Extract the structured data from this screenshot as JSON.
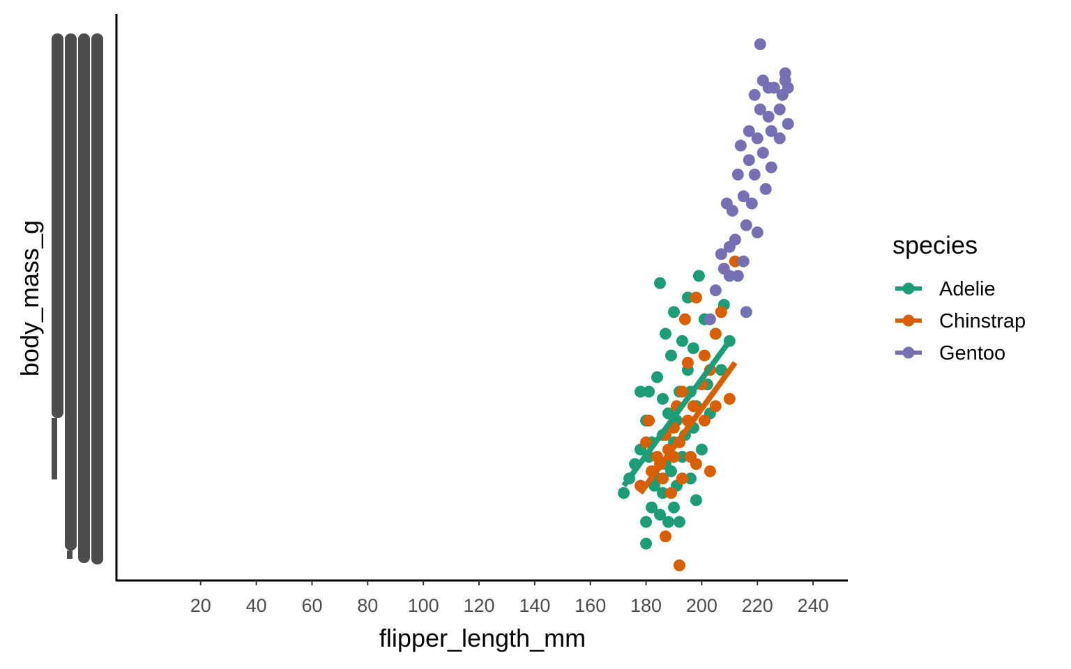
{
  "chart_data": {
    "type": "scatter",
    "xlabel": "flipper_length_mm",
    "ylabel": "body_mass_g",
    "xlim": [
      -10,
      252
    ],
    "ylim": [
      2600,
      6500
    ],
    "x_ticks": [
      20,
      40,
      60,
      80,
      100,
      120,
      140,
      160,
      180,
      200,
      220,
      240
    ],
    "y_ticks_note": "y tick labels overplotted (unreadable)",
    "grid": false,
    "legend": {
      "title": "species",
      "placement": "right"
    },
    "series": [
      {
        "name": "Adelie",
        "color": "#1b9e77",
        "x": [
          172,
          174,
          176,
          178,
          178,
          180,
          180,
          180,
          181,
          181,
          182,
          182,
          183,
          184,
          184,
          185,
          185,
          186,
          186,
          186,
          187,
          187,
          188,
          188,
          189,
          189,
          190,
          190,
          190,
          191,
          191,
          192,
          192,
          193,
          193,
          194,
          195,
          195,
          196,
          196,
          197,
          197,
          198,
          198,
          199,
          200,
          201,
          202,
          203,
          205,
          207,
          208,
          210
        ],
        "y": [
          3200,
          3300,
          3400,
          3500,
          3900,
          2850,
          3000,
          3700,
          3450,
          3900,
          3100,
          3550,
          3250,
          3300,
          4000,
          3050,
          4650,
          3200,
          3600,
          3850,
          3400,
          4300,
          3000,
          3750,
          3350,
          4150,
          3100,
          3550,
          4450,
          3250,
          3700,
          3000,
          3900,
          3450,
          4250,
          3600,
          4050,
          4550,
          3300,
          3900,
          3650,
          4200,
          3150,
          3800,
          4700,
          3500,
          4400,
          3950,
          3750,
          4300,
          4050,
          4500,
          4250
        ]
      },
      {
        "name": "Chinstrap",
        "color": "#d95f02",
        "x": [
          178,
          180,
          181,
          182,
          184,
          185,
          186,
          187,
          187,
          188,
          189,
          190,
          190,
          191,
          192,
          192,
          193,
          193,
          194,
          195,
          195,
          196,
          197,
          198,
          198,
          200,
          201,
          201,
          203,
          203,
          205,
          205,
          207,
          210,
          212
        ],
        "y": [
          3250,
          3550,
          3700,
          3350,
          3450,
          3400,
          3300,
          3600,
          2900,
          3500,
          3200,
          3650,
          3450,
          3800,
          2700,
          3550,
          3900,
          3300,
          4400,
          3700,
          4100,
          3450,
          3800,
          4550,
          3400,
          3950,
          3700,
          4150,
          4050,
          3350,
          4300,
          3800,
          4450,
          3850,
          4800
        ],
        "trend": {
          "x": [
            178,
            212
          ],
          "y": [
            3200,
            4100
          ]
        }
      },
      {
        "name": "Gentoo",
        "color": "#7570b3",
        "x": [
          203,
          205,
          207,
          208,
          209,
          210,
          210,
          211,
          212,
          213,
          213,
          214,
          215,
          215,
          216,
          216,
          217,
          217,
          218,
          219,
          219,
          220,
          220,
          221,
          221,
          222,
          222,
          223,
          224,
          224,
          225,
          225,
          226,
          228,
          228,
          229,
          230,
          230,
          231,
          231
        ],
        "y": [
          4400,
          4600,
          4850,
          4750,
          5200,
          4900,
          4700,
          5150,
          4950,
          5400,
          4700,
          5600,
          4800,
          5250,
          5050,
          4450,
          5500,
          5700,
          5200,
          5400,
          5950,
          5000,
          5650,
          5850,
          6300,
          5550,
          6050,
          5300,
          5800,
          6000,
          5450,
          5700,
          6000,
          5650,
          5850,
          5950,
          6050,
          6100,
          5750,
          6000
        ]
      }
    ],
    "adelie_trend": {
      "x": [
        172,
        210
      ],
      "y": [
        3250,
        4250
      ]
    }
  }
}
